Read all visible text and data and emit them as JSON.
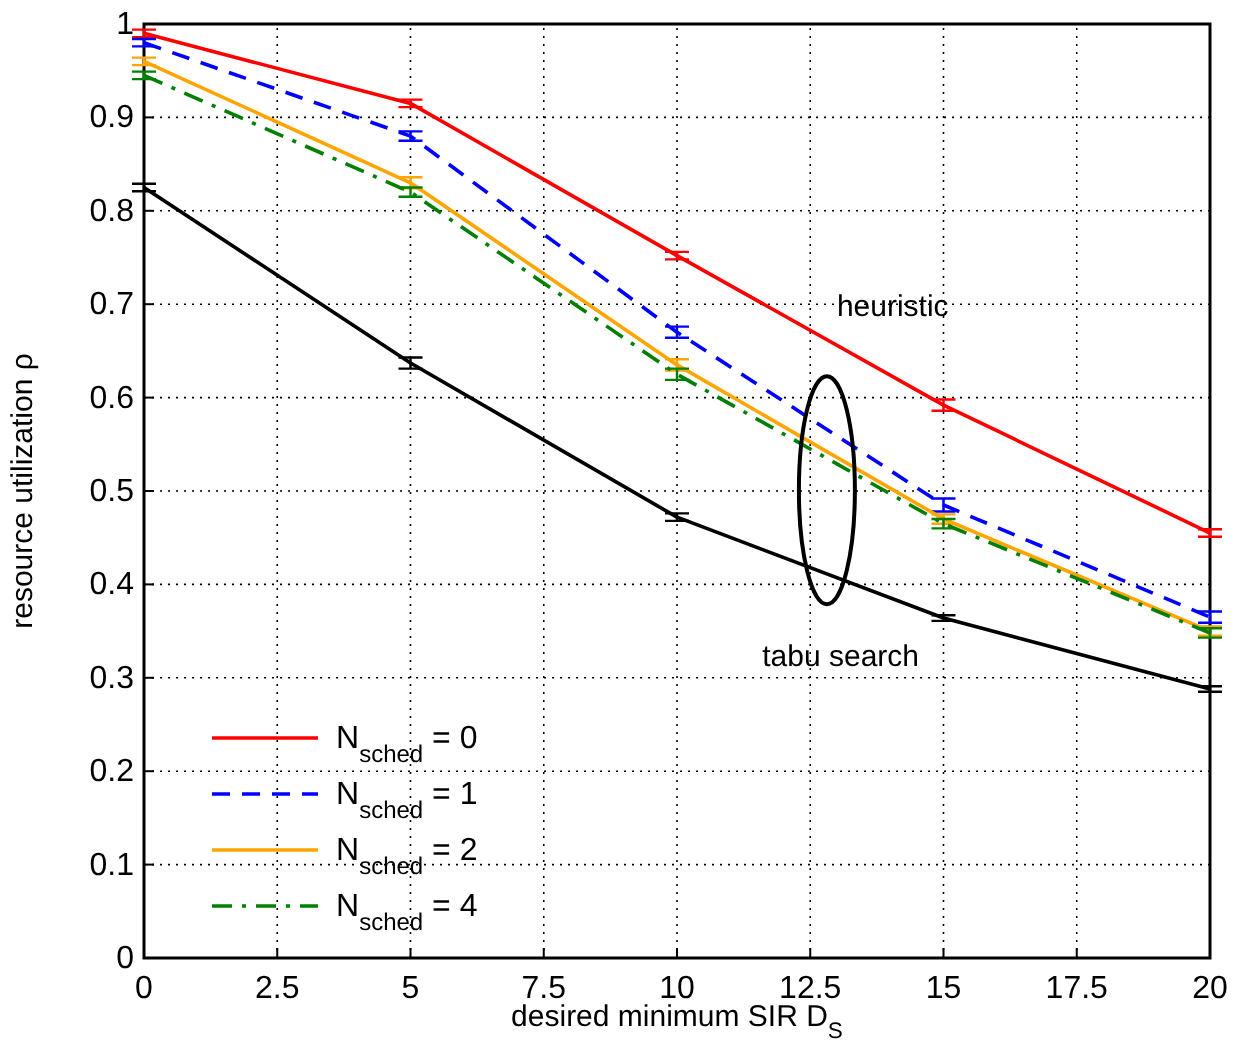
{
  "chart_data": {
    "type": "line",
    "xlabel": "desired minimum SIR D$_{S}$",
    "ylabel": "resource utilization ρ",
    "x": [
      0,
      5,
      10,
      15,
      20
    ],
    "series": [
      {
        "name": "N$_{sched}$ = 0",
        "color": "#ff0000",
        "line_style": "solid",
        "values": [
          0.99,
          0.915,
          0.752,
          0.592,
          0.455
        ],
        "errors": [
          0.004,
          0.004,
          0.004,
          0.006,
          0.004
        ]
      },
      {
        "name": "N$_{sched}$ = 1",
        "color": "#0000ff",
        "line_style": "dashed",
        "values": [
          0.98,
          0.88,
          0.67,
          0.485,
          0.365
        ],
        "errors": [
          0.004,
          0.005,
          0.006,
          0.007,
          0.006
        ]
      },
      {
        "name": "N$_{sched}$ = 2",
        "color": "#ffa500",
        "line_style": "solid",
        "values": [
          0.96,
          0.83,
          0.635,
          0.47,
          0.35
        ],
        "errors": [
          0.004,
          0.006,
          0.006,
          0.005,
          0.005
        ]
      },
      {
        "name": "N$_{sched}$ = 4",
        "color": "#008000",
        "line_style": "dashdot",
        "values": [
          0.945,
          0.82,
          0.625,
          0.465,
          0.348
        ],
        "errors": [
          0.004,
          0.005,
          0.006,
          0.005,
          0.005
        ]
      },
      {
        "color": "#000000",
        "line_style": "solid",
        "values": [
          0.825,
          0.637,
          0.472,
          0.364,
          0.288
        ],
        "errors": [
          0.004,
          0.006,
          0.004,
          0.003,
          0.003
        ]
      }
    ],
    "annotations": [
      "heuristic",
      "tabu search"
    ],
    "xlim": [
      0,
      20
    ],
    "xticks": [
      0,
      2.5,
      5,
      7.5,
      10,
      12.5,
      15,
      17.5,
      20
    ],
    "ylim": [
      0,
      1
    ],
    "yticks": [
      0,
      0.1,
      0.2,
      0.3,
      0.4,
      0.5,
      0.6,
      0.7,
      0.8,
      0.9,
      1
    ],
    "grid": true,
    "legend": "bottom left",
    "marker": "none"
  }
}
